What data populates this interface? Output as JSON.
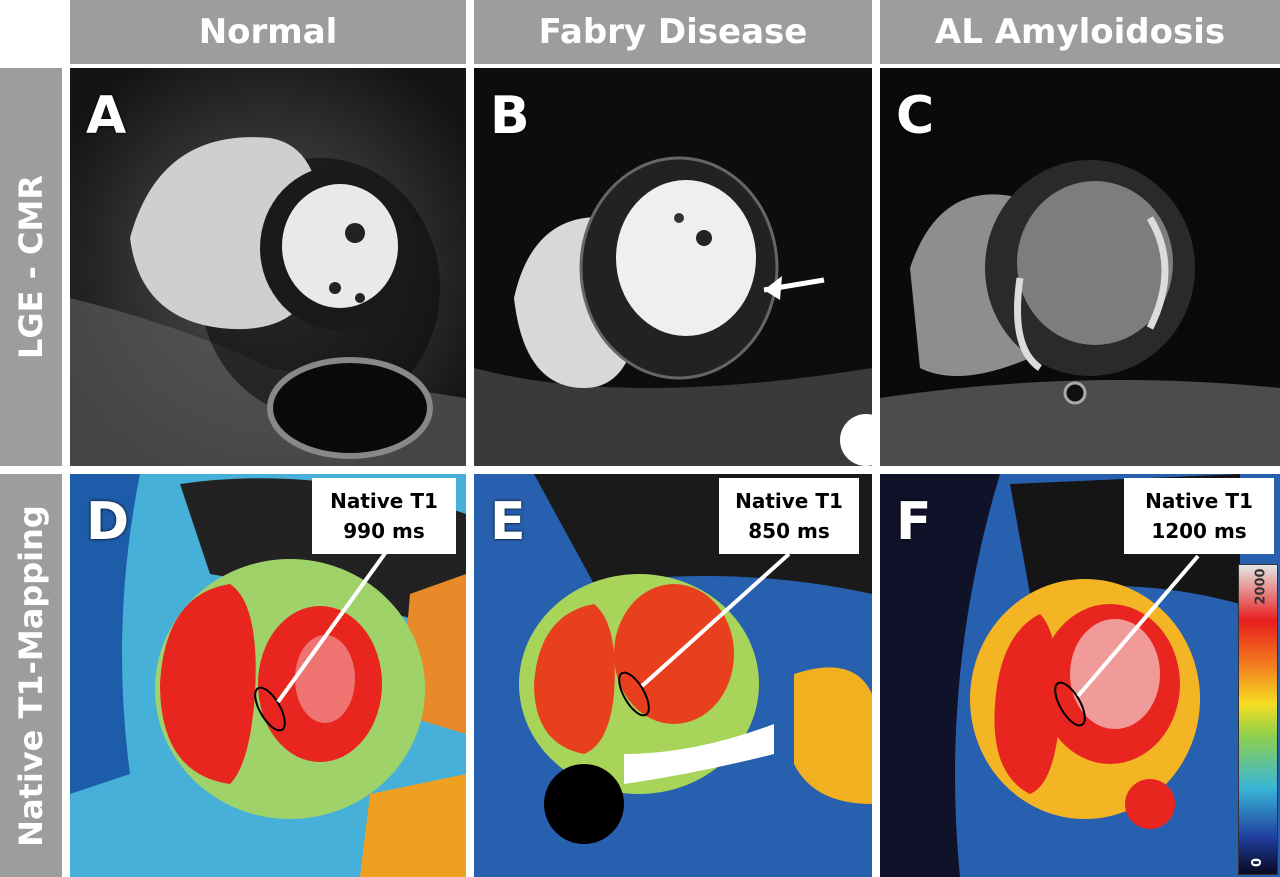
{
  "columns": {
    "normal": "Normal",
    "fabry": "Fabry Disease",
    "amyloid": "AL Amyloidosis"
  },
  "rows": {
    "lge": "LGE - CMR",
    "t1": "Native T1-Mapping"
  },
  "panels": {
    "a": {
      "letter": "A"
    },
    "b": {
      "letter": "B"
    },
    "c": {
      "letter": "C"
    },
    "d": {
      "letter": "D",
      "label": "Native T1",
      "value": "990 ms"
    },
    "e": {
      "letter": "E",
      "label": "Native T1",
      "value": "850 ms"
    },
    "f": {
      "letter": "F",
      "label": "Native T1",
      "value": "1200 ms"
    }
  },
  "colorbar": {
    "max": "2000",
    "min": "0"
  }
}
